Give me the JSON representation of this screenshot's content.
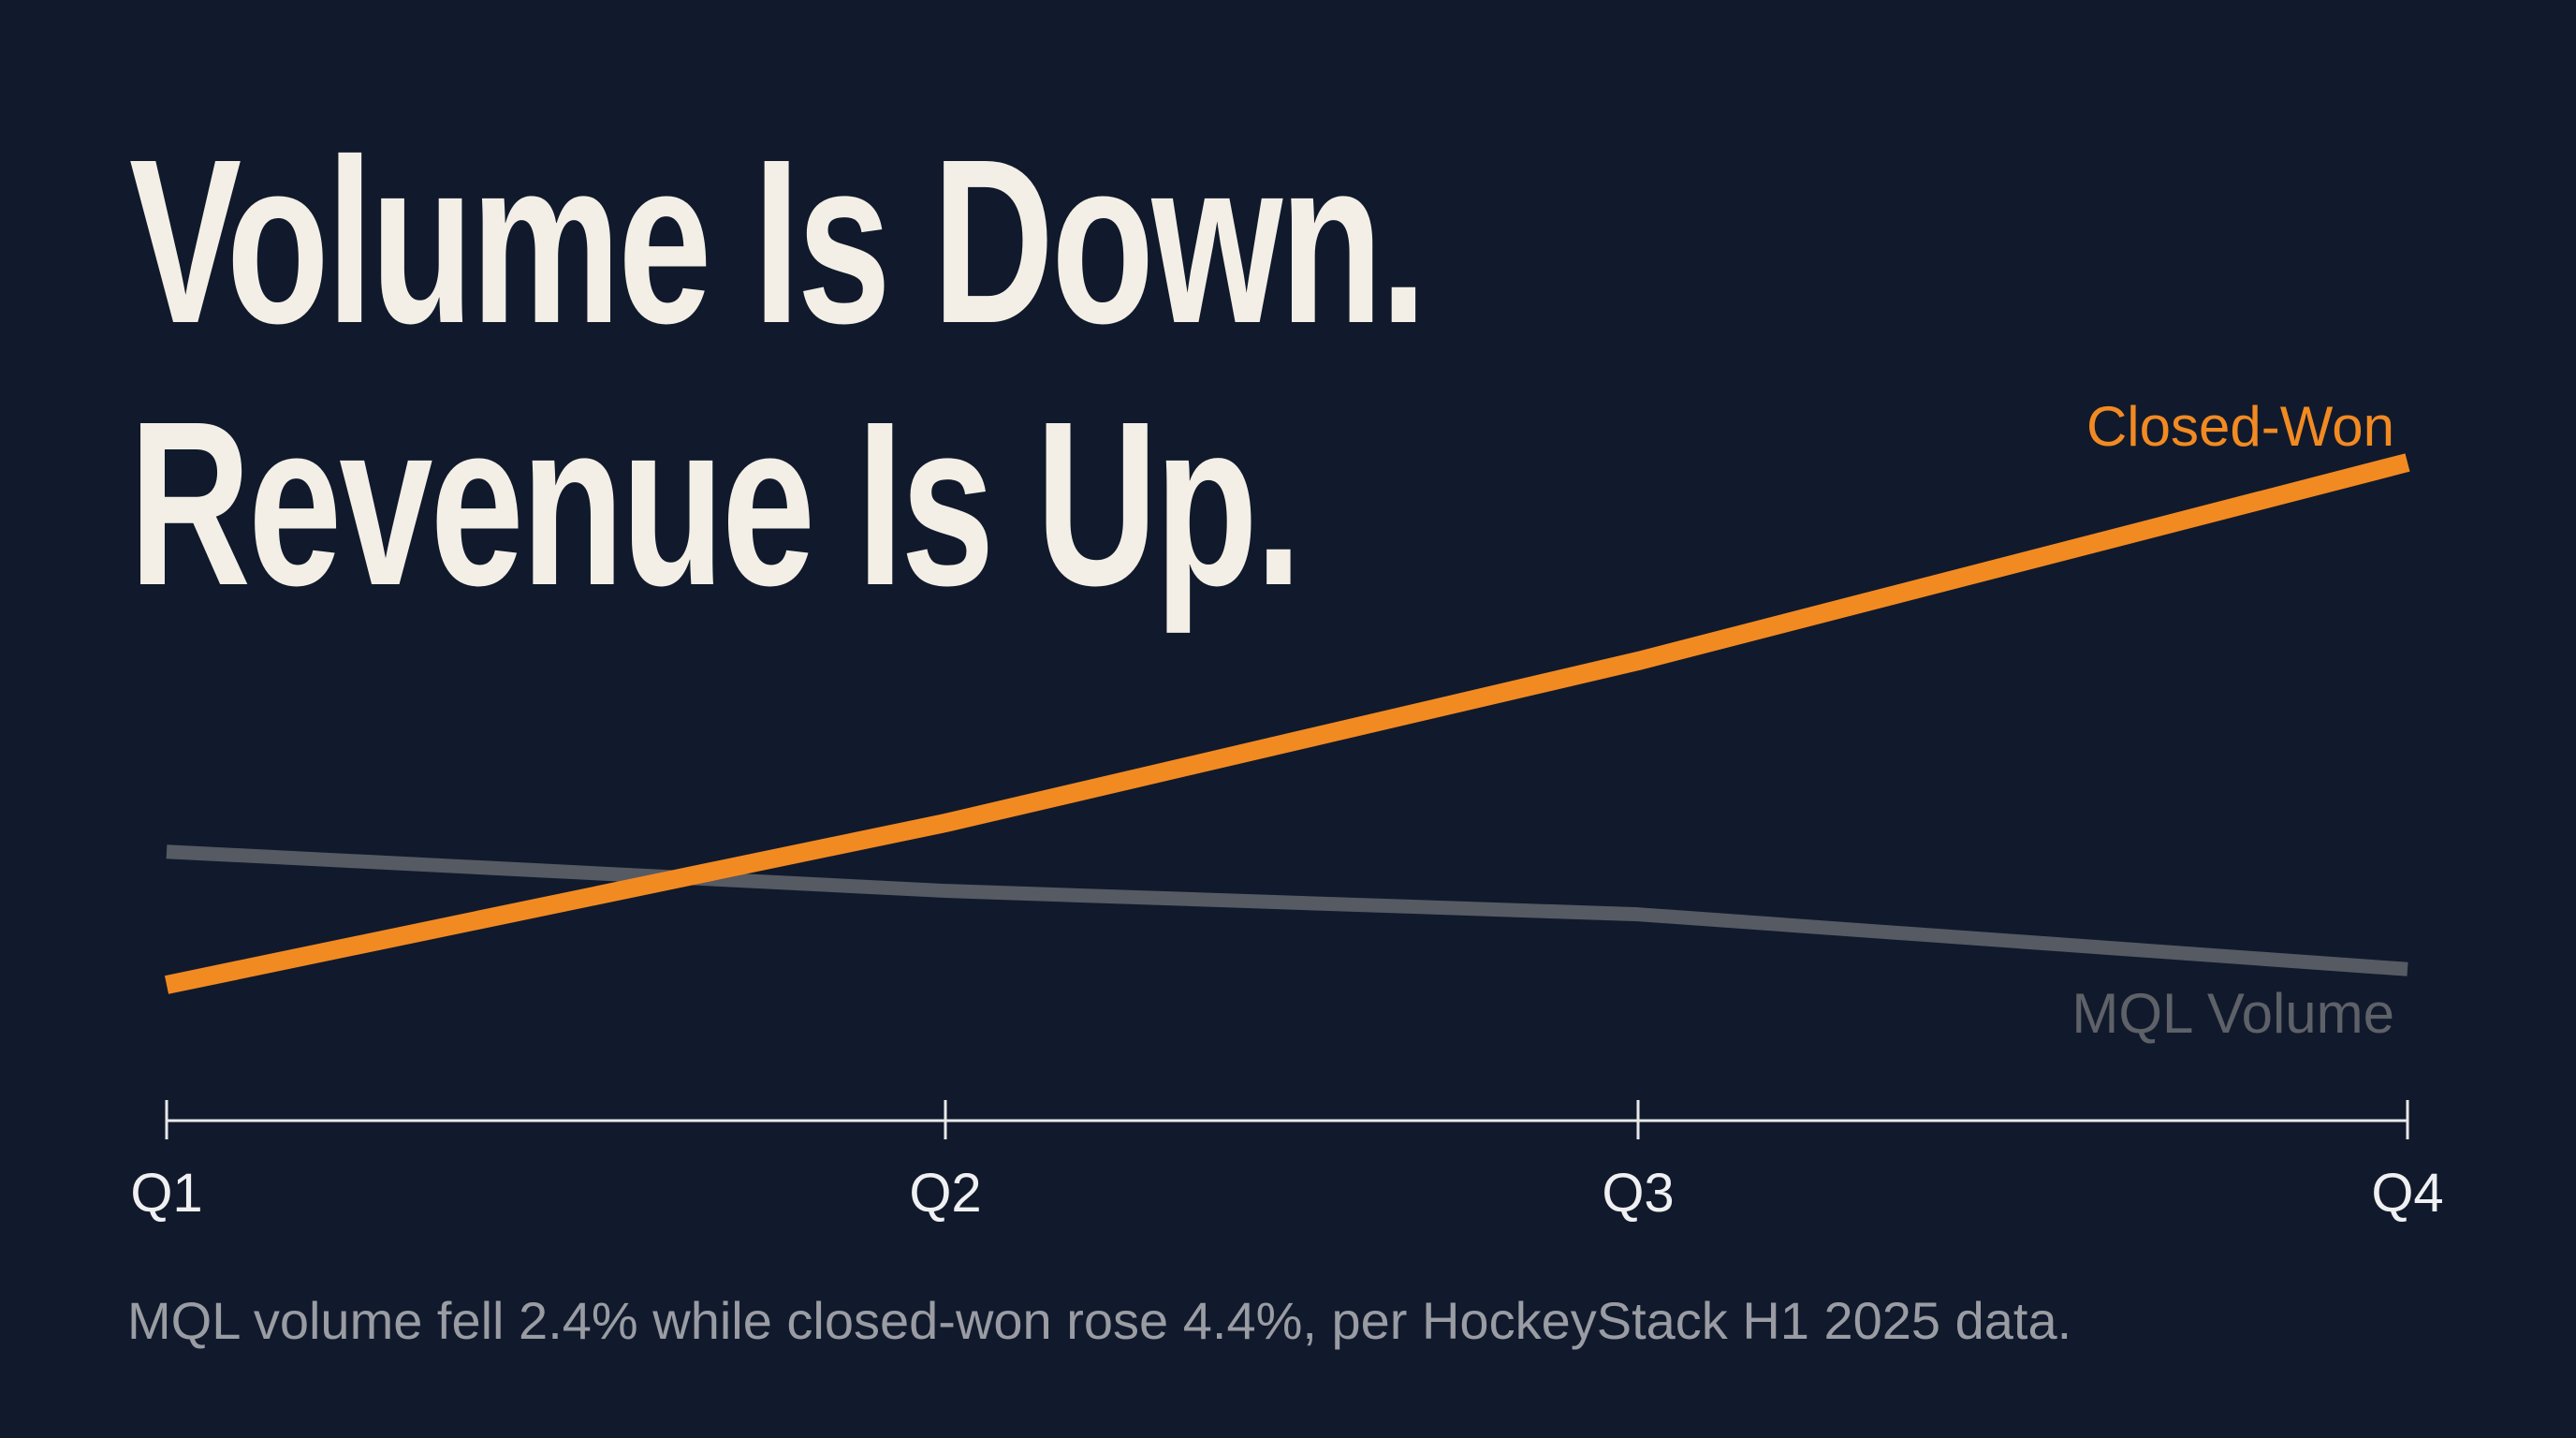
{
  "headline": {
    "line1": "Volume Is Down.",
    "line2": "Revenue Is Up."
  },
  "caption": "MQL volume fell 2.4% while closed-won rose 4.4%, per HockeyStack H1 2025 data.",
  "chart_data": {
    "type": "line",
    "categories": [
      "Q1",
      "Q2",
      "Q3",
      "Q4"
    ],
    "series": [
      {
        "name": "Closed-Won",
        "color": "#f28a22",
        "values": [
          0.0,
          0.31,
          0.62,
          1.0
        ]
      },
      {
        "name": "MQL Volume",
        "color": "#565a62",
        "values": [
          0.255,
          0.18,
          0.135,
          0.03
        ]
      }
    ],
    "ylim": [
      0,
      1
    ],
    "grid": false,
    "axis_color": "#e8e8ea",
    "background": "#111a2c"
  }
}
